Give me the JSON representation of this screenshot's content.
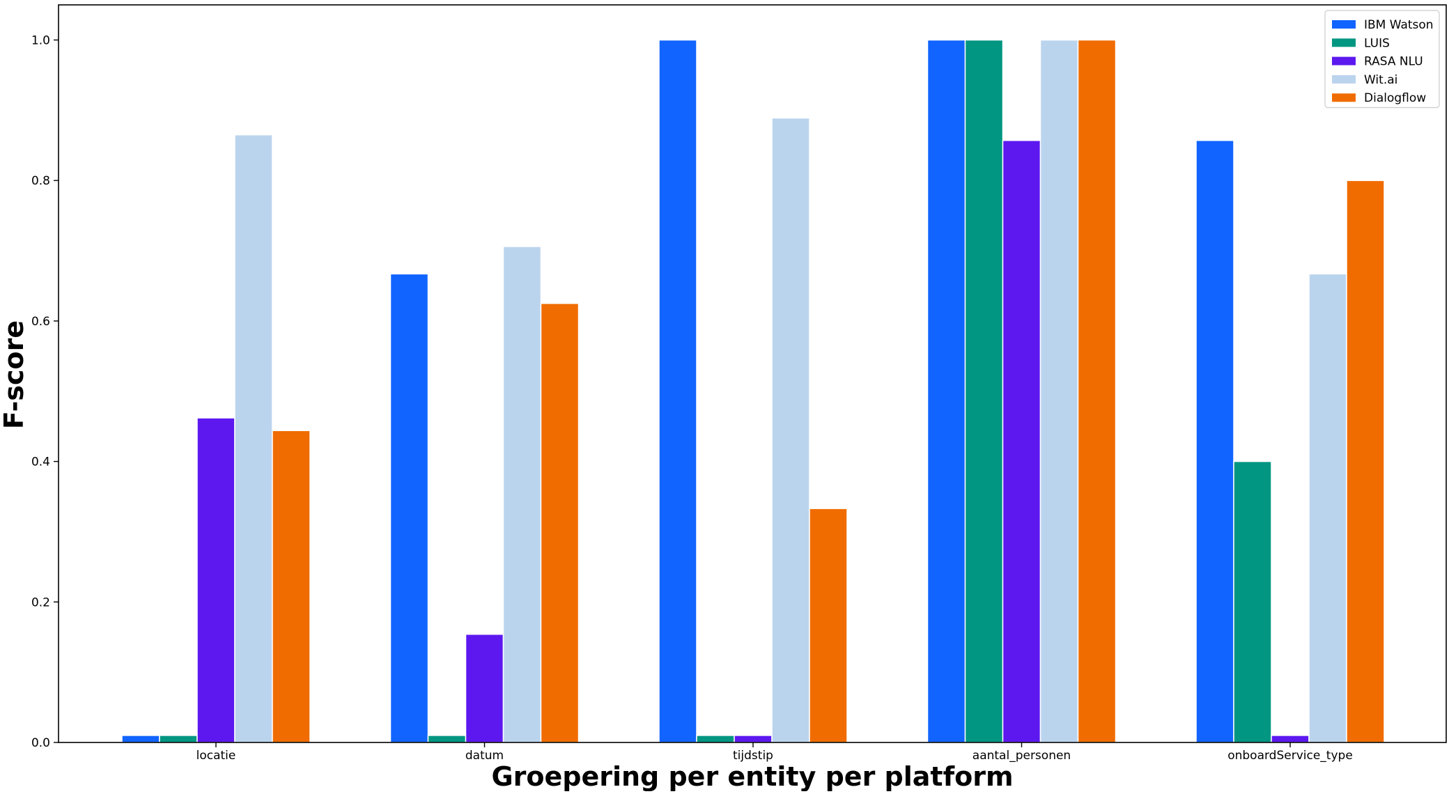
{
  "chart_data": {
    "type": "bar",
    "title": "",
    "xlabel": "Groepering per entity per platform",
    "ylabel": "F-score",
    "categories": [
      "locatie",
      "datum",
      "tijdstip",
      "aantal_personen",
      "onboardService_type"
    ],
    "series": [
      {
        "name": "IBM Watson",
        "color": "#1164ff",
        "values": [
          0.01,
          0.667,
          1.0,
          1.0,
          0.857
        ]
      },
      {
        "name": "LUIS",
        "color": "#009682",
        "values": [
          0.01,
          0.01,
          0.01,
          1.0,
          0.4
        ]
      },
      {
        "name": "RASA NLU",
        "color": "#5d18ef",
        "values": [
          0.462,
          0.154,
          0.01,
          0.857,
          0.01
        ]
      },
      {
        "name": "Wit.ai",
        "color": "#bbd4ee",
        "values": [
          0.865,
          0.706,
          0.889,
          1.0,
          0.667
        ]
      },
      {
        "name": "Dialogflow",
        "color": "#f06c00",
        "values": [
          0.444,
          0.625,
          0.333,
          1.0,
          0.8
        ]
      }
    ],
    "ylim": [
      0,
      1.05
    ],
    "yticks": [
      "0.0",
      "0.2",
      "0.4",
      "0.6",
      "0.8",
      "1.0"
    ],
    "grid": false,
    "legend_position": "top-right"
  }
}
